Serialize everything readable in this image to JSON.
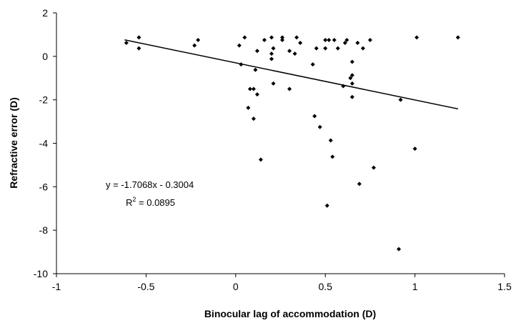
{
  "chart_data": {
    "type": "scatter",
    "title": "",
    "xlabel": "Binocular lag of accommodation (D)",
    "ylabel": "Refractive error (D)",
    "xlim": [
      -1,
      1.5
    ],
    "ylim": [
      -10,
      2
    ],
    "xticks": [
      -1,
      -0.5,
      0,
      0.5,
      1,
      1.5
    ],
    "yticks": [
      2,
      0,
      -2,
      -4,
      -6,
      -8,
      -10
    ],
    "xtick_labels": [
      "-1",
      "-0.5",
      "0",
      "0.5",
      "1",
      "1.5"
    ],
    "ytick_labels": [
      "2",
      "0",
      "-2",
      "-4",
      "-6",
      "-8",
      "-10"
    ],
    "grid": false,
    "point_color": "#000000",
    "trendline": {
      "slope": -1.7068,
      "intercept": -0.3004,
      "x_range": [
        -0.62,
        1.24
      ]
    },
    "annotations": {
      "equation": "y = -1.7068x - 0.3004",
      "r2_prefix": "R",
      "r2_exp": "2",
      "r2_suffix": " = 0.0895"
    },
    "points": [
      [
        -0.61,
        0.62
      ],
      [
        -0.54,
        0.87
      ],
      [
        -0.54,
        0.37
      ],
      [
        -0.23,
        0.5
      ],
      [
        -0.21,
        0.75
      ],
      [
        0.02,
        0.5
      ],
      [
        0.03,
        -0.37
      ],
      [
        0.05,
        0.87
      ],
      [
        0.07,
        -2.37
      ],
      [
        0.08,
        -1.5
      ],
      [
        0.1,
        -1.5
      ],
      [
        0.1,
        -2.87
      ],
      [
        0.11,
        -0.62
      ],
      [
        0.12,
        0.25
      ],
      [
        0.12,
        -1.75
      ],
      [
        0.14,
        -4.75
      ],
      [
        0.16,
        0.75
      ],
      [
        0.2,
        0.87
      ],
      [
        0.2,
        0.12
      ],
      [
        0.2,
        -0.12
      ],
      [
        0.21,
        0.37
      ],
      [
        0.21,
        -1.25
      ],
      [
        0.26,
        0.87
      ],
      [
        0.26,
        0.75
      ],
      [
        0.3,
        0.25
      ],
      [
        0.3,
        -1.5
      ],
      [
        0.33,
        0.12
      ],
      [
        0.34,
        0.87
      ],
      [
        0.36,
        0.62
      ],
      [
        0.43,
        -0.37
      ],
      [
        0.44,
        -2.75
      ],
      [
        0.45,
        0.37
      ],
      [
        0.47,
        -3.25
      ],
      [
        0.5,
        0.75
      ],
      [
        0.5,
        0.37
      ],
      [
        0.51,
        -6.87
      ],
      [
        0.52,
        0.75
      ],
      [
        0.53,
        -3.87
      ],
      [
        0.54,
        -4.62
      ],
      [
        0.55,
        0.75
      ],
      [
        0.57,
        0.37
      ],
      [
        0.6,
        -1.37
      ],
      [
        0.61,
        0.62
      ],
      [
        0.62,
        0.75
      ],
      [
        0.64,
        -1.0
      ],
      [
        0.65,
        -1.25
      ],
      [
        0.65,
        -1.87
      ],
      [
        0.65,
        -0.25
      ],
      [
        0.65,
        -0.87
      ],
      [
        0.68,
        0.62
      ],
      [
        0.69,
        -5.87
      ],
      [
        0.71,
        0.37
      ],
      [
        0.75,
        0.75
      ],
      [
        0.77,
        -5.12
      ],
      [
        0.91,
        -8.87
      ],
      [
        0.92,
        -2.0
      ],
      [
        1.0,
        -4.25
      ],
      [
        1.01,
        0.87
      ],
      [
        1.24,
        0.87
      ]
    ]
  }
}
